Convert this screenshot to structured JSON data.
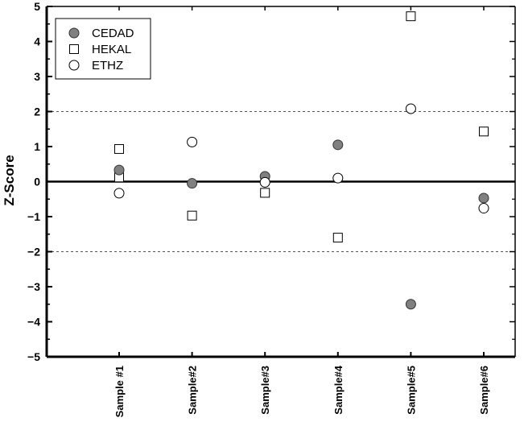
{
  "chart_data": {
    "type": "scatter",
    "title": "",
    "xlabel": "",
    "ylabel": "Z-Score",
    "ylim": [
      -5,
      5
    ],
    "yticks": [
      -5,
      -4,
      -3,
      -2,
      -1,
      0,
      1,
      2,
      3,
      4,
      5
    ],
    "ytick_labels": [
      "−5",
      "−4",
      "−3",
      "−2",
      "−1",
      "0",
      "1",
      "2",
      "3",
      "4",
      "5"
    ],
    "categories": [
      "Sample #1",
      "Sample#2",
      "Sample#3",
      "Sample#4",
      "Sample#5",
      "Sample#6"
    ],
    "reference_lines": [
      {
        "y": 2,
        "style": "dashed"
      },
      {
        "y": -2,
        "style": "dashed"
      },
      {
        "y": 0,
        "style": "solid-bold"
      }
    ],
    "grid": false,
    "legend_position": "top-left",
    "series": [
      {
        "name": "CEDAD",
        "marker": "filled-circle",
        "color": "#808080",
        "values": [
          0.33,
          -0.05,
          0.15,
          1.05,
          -3.5,
          -0.47
        ]
      },
      {
        "name": "HEKAL",
        "marker": "open-square",
        "color": "#ffffff",
        "values": [
          0.93,
          -0.97,
          -0.32,
          -1.6,
          4.72,
          1.43
        ]
      },
      {
        "name": "ETHZ",
        "marker": "open-circle",
        "color": "#ffffff",
        "values": [
          -0.33,
          1.13,
          -0.02,
          0.1,
          2.08,
          -0.76
        ]
      }
    ],
    "extra_points": [
      {
        "series": "HEKAL",
        "category": "Sample #1",
        "value": 0.12
      }
    ]
  }
}
